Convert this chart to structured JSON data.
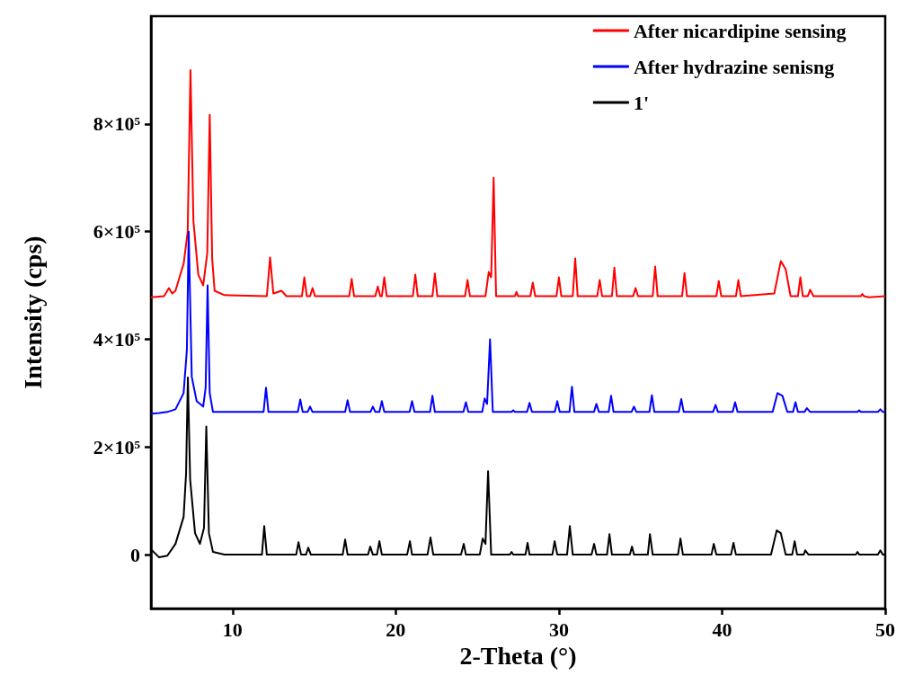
{
  "chart_data": {
    "type": "line",
    "xlabel": "2-Theta (°)",
    "ylabel": "Intensity (cps)",
    "xlim": [
      5,
      50
    ],
    "xticks": [
      10,
      20,
      30,
      40,
      50
    ],
    "ylim": [
      -100000,
      1000000
    ],
    "yticks": [
      0,
      {
        "value": 200000,
        "label": "2×10⁵"
      },
      {
        "value": 400000,
        "label": "4×10⁵"
      },
      {
        "value": 600000,
        "label": "6×10⁵"
      },
      {
        "value": 800000,
        "label": "8×10⁵"
      }
    ],
    "grid": false,
    "legend": "top right",
    "series": [
      {
        "name": "After nicardipine sensing",
        "color": "#ff0000",
        "x": [
          5,
          5.8,
          6.1,
          6.3,
          6.5,
          7.0,
          7.25,
          7.42,
          7.6,
          7.9,
          8.2,
          8.45,
          8.6,
          8.75,
          8.9,
          9.5,
          12.1,
          12.3,
          12.5,
          13.0,
          13.3,
          14.25,
          14.4,
          14.55,
          14.75,
          14.9,
          15.05,
          17.15,
          17.3,
          17.45,
          18.75,
          18.9,
          19.05,
          19.15,
          19.3,
          19.45,
          21.05,
          21.2,
          21.35,
          22.25,
          22.4,
          22.55,
          24.25,
          24.4,
          24.55,
          25.5,
          25.7,
          25.85,
          26.0,
          26.15,
          27.3,
          27.4,
          27.5,
          28.25,
          28.4,
          28.55,
          29.85,
          30.0,
          30.15,
          30.85,
          31.0,
          31.15,
          32.35,
          32.5,
          32.65,
          33.25,
          33.4,
          33.55,
          34.55,
          34.7,
          34.85,
          35.75,
          35.9,
          36.05,
          37.55,
          37.7,
          37.85,
          39.65,
          39.8,
          39.95,
          40.85,
          41.0,
          41.15,
          43.2,
          43.6,
          43.9,
          44.2,
          44.65,
          44.8,
          44.95,
          45.25,
          45.4,
          45.6,
          48.5,
          48.6,
          48.7,
          49.0,
          50
        ],
        "values": [
          478000,
          480000,
          495000,
          485000,
          490000,
          540000,
          600000,
          900000,
          620000,
          520000,
          500000,
          560000,
          817000,
          550000,
          490000,
          482000,
          480000,
          552000,
          485000,
          490000,
          480000,
          480000,
          515000,
          480000,
          480000,
          495000,
          480000,
          480000,
          512000,
          480000,
          480000,
          498000,
          480000,
          480000,
          515000,
          480000,
          480000,
          520000,
          480000,
          480000,
          522000,
          480000,
          480000,
          510000,
          480000,
          480000,
          525000,
          515000,
          700000,
          480000,
          480000,
          488000,
          480000,
          480000,
          505000,
          480000,
          480000,
          515000,
          480000,
          480000,
          550000,
          480000,
          480000,
          510000,
          480000,
          480000,
          533000,
          480000,
          480000,
          495000,
          480000,
          480000,
          535000,
          480000,
          480000,
          523000,
          480000,
          480000,
          508000,
          480000,
          480000,
          510000,
          480000,
          485000,
          545000,
          530000,
          480000,
          480000,
          515000,
          480000,
          480000,
          492000,
          480000,
          480000,
          484000,
          480000,
          478000,
          480000
        ]
      },
      {
        "name": "After hydrazine senisng",
        "color": "#0000ff",
        "x": [
          5,
          5.5,
          6,
          6.5,
          7,
          7.2,
          7.31,
          7.5,
          7.8,
          8.2,
          8.35,
          8.47,
          8.6,
          8.8,
          9.5,
          11.9,
          12.05,
          12.2,
          14.0,
          14.15,
          14.3,
          14.6,
          14.75,
          14.9,
          16.9,
          17.05,
          17.2,
          18.45,
          18.6,
          18.75,
          19.0,
          19.15,
          19.3,
          20.85,
          21.0,
          21.15,
          22.1,
          22.25,
          22.4,
          24.15,
          24.3,
          24.45,
          25.3,
          25.45,
          25.6,
          25.78,
          25.95,
          27.1,
          27.2,
          27.3,
          28.05,
          28.2,
          28.35,
          29.75,
          29.9,
          30.05,
          30.65,
          30.8,
          30.95,
          32.15,
          32.3,
          32.45,
          33.05,
          33.2,
          33.35,
          34.45,
          34.6,
          34.75,
          35.55,
          35.7,
          35.85,
          37.35,
          37.5,
          37.65,
          39.45,
          39.6,
          39.75,
          40.65,
          40.8,
          40.95,
          43.1,
          43.4,
          43.7,
          44.0,
          44.35,
          44.5,
          44.65,
          45.05,
          45.2,
          45.4,
          48.3,
          48.4,
          48.5,
          49.55,
          49.7,
          49.85,
          50
        ],
        "values": [
          262000,
          263000,
          265000,
          270000,
          300000,
          380000,
          600000,
          330000,
          285000,
          275000,
          310000,
          500000,
          300000,
          265000,
          265000,
          265000,
          310000,
          265000,
          265000,
          288000,
          265000,
          265000,
          275000,
          265000,
          265000,
          287000,
          265000,
          265000,
          275000,
          265000,
          265000,
          285000,
          265000,
          265000,
          285000,
          265000,
          265000,
          295000,
          265000,
          265000,
          283000,
          265000,
          265000,
          290000,
          280000,
          400000,
          265000,
          265000,
          268000,
          265000,
          265000,
          282000,
          265000,
          265000,
          285000,
          265000,
          265000,
          312000,
          265000,
          265000,
          280000,
          265000,
          265000,
          295000,
          265000,
          265000,
          275000,
          265000,
          265000,
          296000,
          265000,
          265000,
          289000,
          265000,
          265000,
          278000,
          265000,
          265000,
          283000,
          265000,
          265000,
          300000,
          295000,
          265000,
          265000,
          283000,
          265000,
          265000,
          272000,
          265000,
          265000,
          268000,
          265000,
          265000,
          270000,
          265000,
          265000
        ]
      },
      {
        "name": "1'",
        "color": "#000000",
        "x": [
          5,
          5.5,
          6,
          6.5,
          7,
          7.15,
          7.26,
          7.4,
          7.7,
          8,
          8.25,
          8.39,
          8.55,
          8.8,
          9.5,
          11.8,
          11.94,
          12.1,
          13.9,
          14.04,
          14.2,
          14.5,
          14.64,
          14.8,
          16.75,
          16.9,
          17.05,
          18.3,
          18.44,
          18.6,
          18.85,
          19.0,
          19.15,
          20.7,
          20.87,
          21.0,
          21.95,
          22.13,
          22.3,
          24.0,
          24.17,
          24.3,
          25.15,
          25.33,
          25.5,
          25.66,
          25.85,
          27.0,
          27.1,
          27.2,
          27.95,
          28.08,
          28.2,
          29.6,
          29.74,
          29.9,
          30.5,
          30.67,
          30.85,
          32.0,
          32.16,
          32.3,
          32.95,
          33.1,
          33.25,
          34.35,
          34.48,
          34.6,
          35.45,
          35.58,
          35.75,
          37.3,
          37.45,
          37.6,
          39.35,
          39.49,
          39.65,
          40.55,
          40.7,
          40.85,
          43.0,
          43.35,
          43.6,
          43.9,
          44.3,
          44.45,
          44.6,
          45.0,
          45.1,
          45.3,
          48.2,
          48.3,
          48.4,
          49.55,
          49.7,
          49.85,
          50
        ],
        "values": [
          10000,
          -5000,
          -2000,
          20000,
          70000,
          150000,
          329000,
          140000,
          40000,
          20000,
          50000,
          238000,
          40000,
          5000,
          0,
          0,
          53000,
          0,
          0,
          23000,
          0,
          0,
          13000,
          0,
          0,
          28000,
          0,
          0,
          15000,
          0,
          0,
          25000,
          0,
          0,
          25000,
          0,
          0,
          32000,
          0,
          0,
          20000,
          0,
          0,
          30000,
          20000,
          155000,
          0,
          0,
          5000,
          0,
          0,
          22000,
          0,
          0,
          25000,
          0,
          0,
          53000,
          0,
          0,
          20000,
          0,
          0,
          38000,
          0,
          0,
          15000,
          0,
          0,
          38000,
          0,
          0,
          30000,
          0,
          0,
          20000,
          0,
          0,
          22000,
          0,
          0,
          45000,
          40000,
          0,
          0,
          25000,
          0,
          0,
          8000,
          0,
          0,
          5000,
          0,
          0,
          8000,
          0,
          0
        ]
      }
    ]
  }
}
